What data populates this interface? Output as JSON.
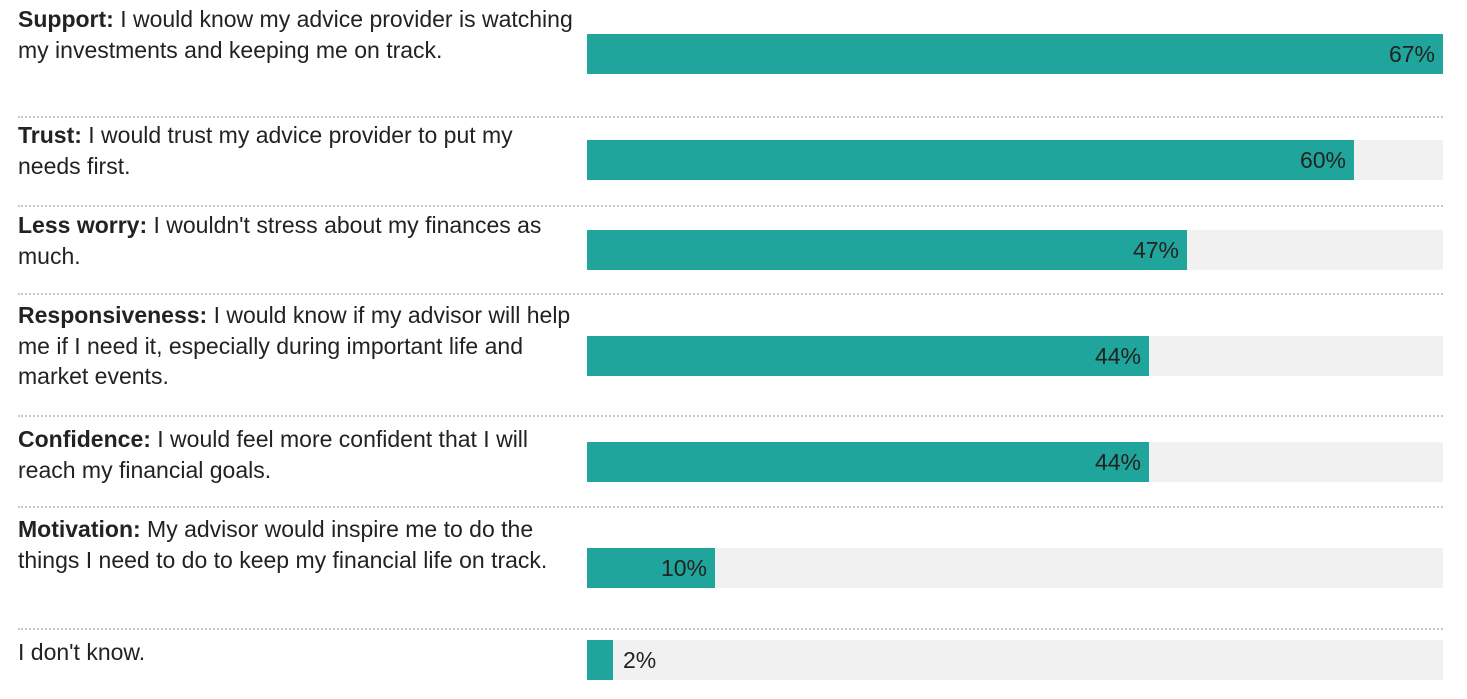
{
  "chart_data": {
    "type": "bar",
    "orientation": "horizontal",
    "categories": [
      {
        "bold": "Support:",
        "text": " I would know my advice provider is watching my investments and keeping me on track."
      },
      {
        "bold": "Trust:",
        "text": " I would trust my advice provider to put my needs first."
      },
      {
        "bold": "Less worry:",
        "text": " I wouldn't stress about my finances as much."
      },
      {
        "bold": "Responsiveness:",
        "text": " I would know if my advisor will help me if I need it, especially during important life and market events."
      },
      {
        "bold": "Confidence:",
        "text": " I would feel more confident that I will reach my financial goals."
      },
      {
        "bold": "Motivation:",
        "text": " My advisor would inspire me to do the things I need to do to keep my financial life on track."
      },
      {
        "bold": "",
        "text": "I don't know."
      }
    ],
    "values": [
      67,
      60,
      47,
      44,
      44,
      10,
      2
    ],
    "value_labels": [
      "67%",
      "60%",
      "47%",
      "44%",
      "44%",
      "10%",
      "2%"
    ],
    "xlim": [
      0,
      67
    ],
    "colors": {
      "bar": "#1fa59b",
      "track": "#f1f1f1"
    }
  }
}
